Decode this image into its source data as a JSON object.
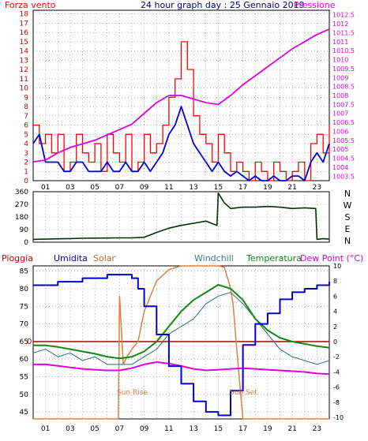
{
  "header": {
    "left_label": "Forza vento",
    "title": "24 hour graph day : 25 Gennaio 2019",
    "right_label": "Pressione"
  },
  "colors": {
    "wind_max": "#ff0000",
    "wind_avg": "#0000dd",
    "pressure": "#dd00dd",
    "direction": "#003300",
    "humidity": "#0000cc",
    "solar": "#e08040",
    "windchill": "#3a7a7a",
    "temperature": "#118811",
    "dew_point": "#dd00dd",
    "rain": "#aa0000",
    "grid": "#808080",
    "frame": "#000000"
  },
  "chart_data": [
    {
      "type": "line",
      "name": "wind-pressure",
      "x_ticks": [
        "01",
        "03",
        "05",
        "07",
        "09",
        "11",
        "13",
        "15",
        "17",
        "19",
        "21",
        "23"
      ],
      "left_axis": {
        "label": "Forza vento",
        "ticks": [
          0,
          1,
          2,
          3,
          4,
          5,
          6,
          7,
          8,
          9,
          10,
          11,
          12,
          13,
          14,
          15,
          16,
          17,
          18
        ],
        "ylim": [
          0,
          18.4
        ]
      },
      "right_axis": {
        "label": "Pressione",
        "ticks": [
          1003.5,
          1004,
          1004.5,
          1005,
          1005.5,
          1006,
          1006.5,
          1007,
          1007.5,
          1008,
          1008.5,
          1009,
          1009.5,
          1010,
          1010.5,
          1011,
          1011.5,
          1012,
          1012.5
        ],
        "ylim": [
          1003.25,
          1012.75
        ]
      },
      "series": [
        {
          "name": "wind_max",
          "x": [
            0,
            0.5,
            1,
            1.5,
            2,
            2.5,
            3,
            3.5,
            4,
            4.5,
            5,
            5.5,
            6,
            6.5,
            7,
            7.5,
            8,
            8.5,
            9,
            9.5,
            10,
            10.5,
            11,
            11.5,
            12,
            12.5,
            13,
            13.5,
            14,
            14.5,
            15,
            15.5,
            16,
            16.5,
            17,
            17.5,
            18,
            18.5,
            19,
            19.5,
            20,
            20.5,
            21,
            21.5,
            22,
            22.5,
            23,
            23.5,
            24
          ],
          "values": [
            6,
            4,
            5,
            3,
            5,
            1,
            2,
            5,
            3,
            2,
            4,
            1,
            5,
            3,
            2,
            5,
            1,
            2,
            5,
            3,
            4,
            6,
            9,
            11,
            15,
            12,
            7,
            5,
            4,
            2,
            5,
            3,
            1,
            2,
            1,
            0,
            2,
            1,
            0,
            2,
            1,
            0,
            1,
            2,
            0,
            4,
            5,
            3,
            6
          ]
        },
        {
          "name": "wind_avg",
          "x": [
            0,
            0.5,
            1,
            1.5,
            2,
            2.5,
            3,
            3.5,
            4,
            4.5,
            5,
            5.5,
            6,
            6.5,
            7,
            7.5,
            8,
            8.5,
            9,
            9.5,
            10,
            10.5,
            11,
            11.5,
            12,
            12.5,
            13,
            13.5,
            14,
            14.5,
            15,
            15.5,
            16,
            16.5,
            17,
            17.5,
            18,
            18.5,
            19,
            19.5,
            20,
            20.5,
            21,
            21.5,
            22,
            22.5,
            23,
            23.5,
            24
          ],
          "values": [
            4,
            5,
            2,
            2,
            2,
            1,
            1,
            2,
            2,
            1,
            1,
            1,
            2,
            1,
            1,
            2,
            1,
            1,
            2,
            1,
            2,
            3,
            5,
            6,
            8,
            6,
            4,
            3,
            2,
            1,
            2,
            1,
            0.5,
            1,
            0.5,
            0,
            0.5,
            0,
            0,
            0.5,
            0,
            0,
            0.5,
            0.5,
            0,
            2,
            3,
            2,
            4
          ]
        },
        {
          "name": "pressure",
          "x": [
            0,
            1,
            2,
            3,
            4,
            5,
            6,
            7,
            8,
            9,
            10,
            11,
            12,
            13,
            14,
            15,
            16,
            17,
            18,
            19,
            20,
            21,
            22,
            23,
            24
          ],
          "values": [
            1004.3,
            1004.4,
            1004.8,
            1005.1,
            1005.3,
            1005.5,
            1005.8,
            1006.1,
            1006.4,
            1007.0,
            1007.6,
            1008.0,
            1008.0,
            1007.8,
            1007.6,
            1007.5,
            1008.0,
            1008.6,
            1009.1,
            1009.6,
            1010.1,
            1010.6,
            1011.0,
            1011.4,
            1011.7
          ]
        }
      ]
    },
    {
      "type": "line",
      "name": "wind-direction",
      "x_ticks": [
        "01",
        "03",
        "05",
        "07",
        "09",
        "11",
        "13",
        "15",
        "17",
        "19",
        "21",
        "23"
      ],
      "left_axis": {
        "ticks": [
          0,
          90,
          180,
          270,
          360
        ],
        "ylim": [
          0,
          360
        ]
      },
      "right_axis": {
        "labels": [
          "N",
          "W",
          "S",
          "E",
          "N"
        ]
      },
      "series": [
        {
          "name": "direction",
          "x": [
            0,
            1,
            2,
            3,
            4,
            5,
            6,
            7,
            8,
            9,
            10,
            11,
            12,
            13,
            14,
            14.9,
            15,
            15.5,
            16,
            17,
            18,
            19,
            20,
            21,
            22,
            22.9,
            23,
            23.5,
            24
          ],
          "values": [
            20,
            22,
            24,
            26,
            28,
            29,
            30,
            31,
            31,
            35,
            70,
            100,
            120,
            135,
            150,
            120,
            350,
            280,
            240,
            250,
            250,
            255,
            250,
            240,
            245,
            240,
            20,
            25,
            22
          ]
        }
      ]
    },
    {
      "type": "line",
      "name": "weather",
      "labels": {
        "rain": "Pioggia",
        "humidity": "Umidita",
        "solar": "Solar",
        "windchill": "Windchill",
        "temperature": "Temperatura",
        "dew_point": "Dew Point (°C)"
      },
      "x_ticks": [
        "01",
        "03",
        "05",
        "07",
        "09",
        "11",
        "13",
        "15",
        "17",
        "19",
        "21",
        "23"
      ],
      "left_axis": {
        "ticks": [
          45,
          50,
          55,
          60,
          65,
          70,
          75,
          80,
          85
        ],
        "ylim": [
          43,
          86.5
        ]
      },
      "right_axis": {
        "ticks": [
          10,
          8,
          6,
          4,
          2,
          0,
          -2,
          -4,
          -6,
          -8,
          -10
        ],
        "ylim": [
          -10.2,
          10
        ]
      },
      "annotations": [
        "Sun Rise",
        "Sun Set"
      ],
      "rain_marker": "0",
      "series": [
        {
          "name": "humidity",
          "axis": "left",
          "x": [
            0,
            1,
            2,
            3,
            4,
            5,
            6,
            7,
            7.5,
            8,
            8.5,
            9,
            10,
            11,
            12,
            13,
            14,
            15,
            16,
            17,
            18,
            19,
            20,
            21,
            22,
            23,
            24
          ],
          "values": [
            81,
            81,
            82,
            82,
            83,
            83,
            84,
            84,
            84,
            83,
            80,
            75,
            67,
            58,
            53,
            48,
            45,
            44,
            51,
            64,
            70,
            73,
            77,
            79,
            80,
            81,
            82
          ]
        },
        {
          "name": "solar",
          "axis": "right",
          "x": [
            0,
            6.9,
            7,
            7.3,
            7.6,
            8,
            8.5,
            9,
            10,
            11,
            12,
            13,
            14,
            15,
            15.5,
            16,
            16.2,
            16.5,
            17,
            24
          ],
          "values": [
            -10.2,
            -10.2,
            6,
            -3,
            -2,
            -1,
            0,
            4,
            8,
            9.5,
            10,
            10,
            10,
            10,
            9.8,
            7,
            5,
            -1,
            -10.2,
            -10.2
          ]
        },
        {
          "name": "windchill",
          "axis": "right",
          "x": [
            0,
            1,
            2,
            3,
            4,
            5,
            6,
            7,
            8,
            9,
            10,
            11,
            12,
            13,
            14,
            15,
            16,
            17,
            18,
            19,
            20,
            21,
            22,
            23,
            24
          ],
          "values": [
            -1.5,
            -1,
            -2,
            -1.5,
            -2.5,
            -2,
            -3,
            -3,
            -3,
            -2,
            -1,
            1,
            2,
            3,
            5,
            6,
            6.5,
            5,
            3,
            1,
            -1,
            -2,
            -2.5,
            -3,
            -2.5
          ]
        },
        {
          "name": "temperature",
          "axis": "right",
          "x": [
            0,
            1,
            2,
            3,
            4,
            5,
            6,
            7,
            8,
            9,
            10,
            11,
            12,
            13,
            14,
            15,
            16,
            17,
            18,
            19,
            20,
            21,
            22,
            23,
            24
          ],
          "values": [
            -0.5,
            -0.5,
            -0.7,
            -1,
            -1.3,
            -1.6,
            -2,
            -2.2,
            -2,
            -1.3,
            0,
            2,
            4,
            5.5,
            6.5,
            7.5,
            7,
            5.5,
            3,
            1.5,
            0.5,
            0,
            -0.3,
            -0.6,
            -0.8
          ]
        },
        {
          "name": "dew_point",
          "axis": "right",
          "x": [
            0,
            1,
            2,
            3,
            4,
            5,
            6,
            7,
            8,
            9,
            10,
            11,
            12,
            13,
            14,
            15,
            16,
            17,
            18,
            19,
            20,
            21,
            22,
            23,
            24
          ],
          "values": [
            -3,
            -3,
            -3.2,
            -3.4,
            -3.6,
            -3.7,
            -3.8,
            -3.8,
            -3.5,
            -3.0,
            -2.7,
            -2.9,
            -3.2,
            -3.6,
            -3.8,
            -3.7,
            -3.6,
            -3.5,
            -3.6,
            -3.7,
            -3.8,
            -3.9,
            -4.0,
            -4.2,
            -4.3
          ]
        }
      ]
    }
  ]
}
